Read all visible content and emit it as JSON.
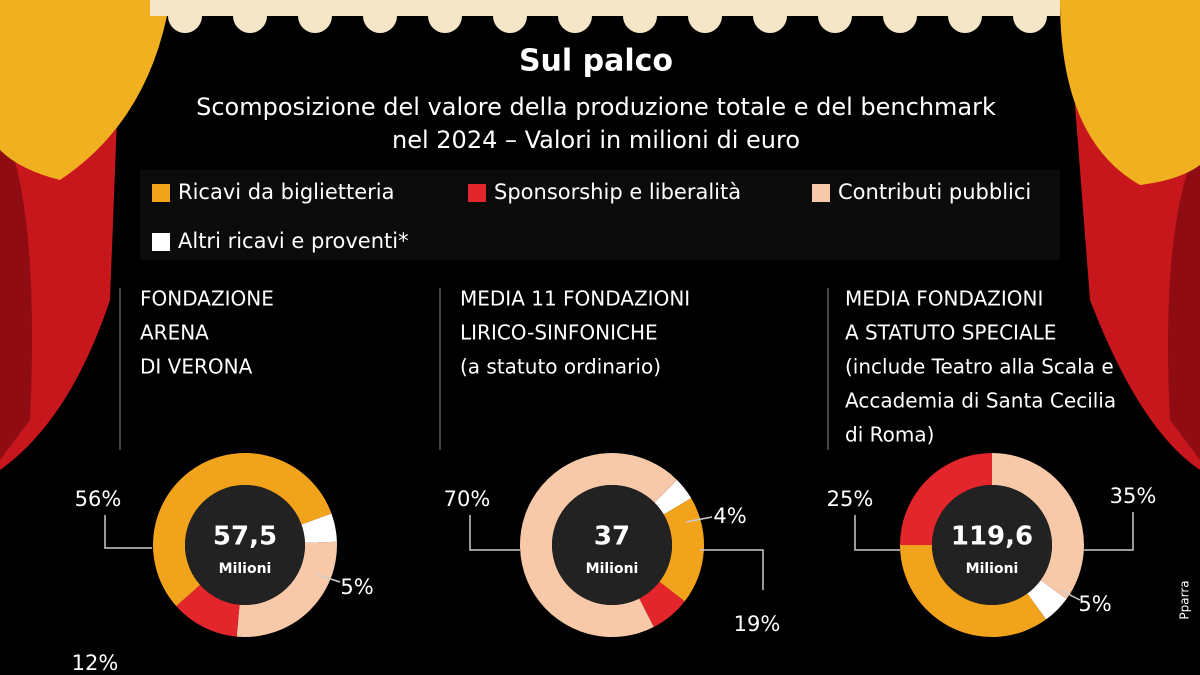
{
  "title": "Sul palco",
  "subtitle": [
    "Scomposizione del valore della produzione totale e del benchmark",
    "nel 2024 – Valori in milioni di euro"
  ],
  "legend": {
    "names": [
      "Ricavi da biglietteria",
      "Sponsorship e liberalità",
      "Contributi pubblici",
      "Altri ricavi e proventi*"
    ],
    "colors": [
      "#f2a31c",
      "#e3262b",
      "#f7c9a8",
      "#ffffff"
    ]
  },
  "credit": "Pparra",
  "chart_data": [
    {
      "type": "pie",
      "title": [
        "FONDAZIONE",
        "ARENA",
        "DI VERONA"
      ],
      "center_label": "57,5",
      "center_unit": "Milioni",
      "values": [
        56,
        12,
        27,
        5
      ],
      "value_labels": [
        "56%",
        "12%",
        null,
        "5%"
      ]
    },
    {
      "type": "pie",
      "title": [
        "MEDIA 11 FONDAZIONI",
        "LIRICO-SINFONICHE",
        "(a statuto ordinario)"
      ],
      "center_label": "37",
      "center_unit": "Milioni",
      "values": [
        19,
        7,
        70,
        4
      ],
      "value_labels": [
        "19%",
        null,
        "70%",
        "4%"
      ]
    },
    {
      "type": "pie",
      "title": [
        "MEDIA  FONDAZIONI",
        "A STATUTO SPECIALE",
        "(include Teatro alla Scala e",
        "Accademia di Santa Cecilia",
        "di Roma)"
      ],
      "center_label": "119,6",
      "center_unit": "Milioni",
      "values": [
        35,
        25,
        35,
        5
      ],
      "value_labels": [
        null,
        "25%",
        "35%",
        "5%"
      ]
    }
  ]
}
